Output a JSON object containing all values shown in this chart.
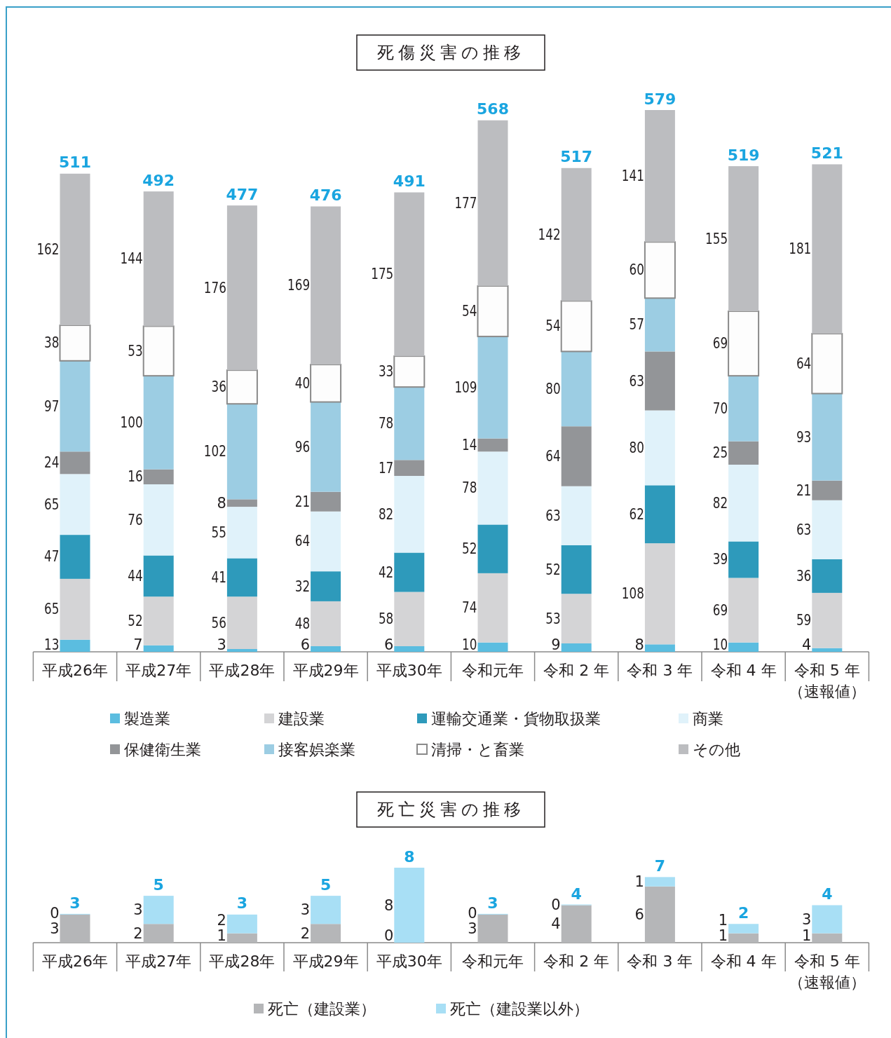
{
  "chart_data": [
    {
      "type": "bar",
      "title": "死傷災害の推移",
      "stacked": true,
      "data_labels": true,
      "legend": "bottom",
      "categories": [
        "平成26年",
        "平成27年",
        "平成28年",
        "平成29年",
        "平成30年",
        "令和元年",
        "令和 2 年",
        "令和 3 年",
        "令和 4 年",
        "令和 5 年（速報値）"
      ],
      "series": [
        {
          "name": "製造業",
          "color": "#5bbde0",
          "values": [
            13,
            7,
            3,
            6,
            6,
            10,
            9,
            8,
            10,
            4
          ]
        },
        {
          "name": "建設業",
          "color": "#d4d4d6",
          "values": [
            65,
            52,
            56,
            48,
            58,
            74,
            53,
            108,
            69,
            59
          ]
        },
        {
          "name": "運輸交通業・貨物取扱業",
          "color": "#2e9abb",
          "values": [
            47,
            44,
            41,
            32,
            42,
            52,
            52,
            62,
            39,
            36
          ]
        },
        {
          "name": "商業",
          "color": "#e0f2fa",
          "values": [
            65,
            76,
            55,
            64,
            82,
            78,
            63,
            80,
            82,
            63
          ]
        },
        {
          "name": "保健衛生業",
          "color": "#939598",
          "values": [
            24,
            16,
            8,
            21,
            17,
            14,
            64,
            63,
            25,
            21
          ]
        },
        {
          "name": "接客娯楽業",
          "color": "#9ccde3",
          "values": [
            97,
            100,
            102,
            96,
            78,
            109,
            80,
            57,
            70,
            93
          ]
        },
        {
          "name": "清掃・と畜業",
          "color": "#fdfdfd",
          "values": [
            38,
            53,
            36,
            40,
            33,
            54,
            54,
            60,
            69,
            64
          ]
        },
        {
          "name": "その他",
          "color": "#bcbdc0",
          "values": [
            162,
            144,
            176,
            169,
            175,
            177,
            142,
            141,
            155,
            181
          ]
        }
      ],
      "totals": [
        "511",
        "492",
        "477",
        "476",
        "491",
        "568",
        "517",
        "579",
        "519",
        "521"
      ]
    },
    {
      "type": "bar",
      "title": "死亡災害の推移",
      "stacked": true,
      "data_labels": true,
      "legend": "bottom",
      "categories": [
        "平成26年",
        "平成27年",
        "平成28年",
        "平成29年",
        "平成30年",
        "令和元年",
        "令和 2 年",
        "令和 3 年",
        "令和 4 年",
        "令和 5 年（速報値）"
      ],
      "series": [
        {
          "name": "死亡（建設業）",
          "color": "#b5b6b8",
          "values": [
            3,
            2,
            1,
            2,
            0,
            3,
            4,
            6,
            1,
            1
          ]
        },
        {
          "name": "死亡（建設業以外）",
          "color": "#a8dff5",
          "values": [
            0,
            3,
            2,
            3,
            8,
            0,
            0,
            1,
            1,
            3
          ]
        }
      ],
      "totals": [
        "3",
        "5",
        "3",
        "5",
        "8",
        "3",
        "4",
        "7",
        "2",
        "4"
      ]
    }
  ]
}
